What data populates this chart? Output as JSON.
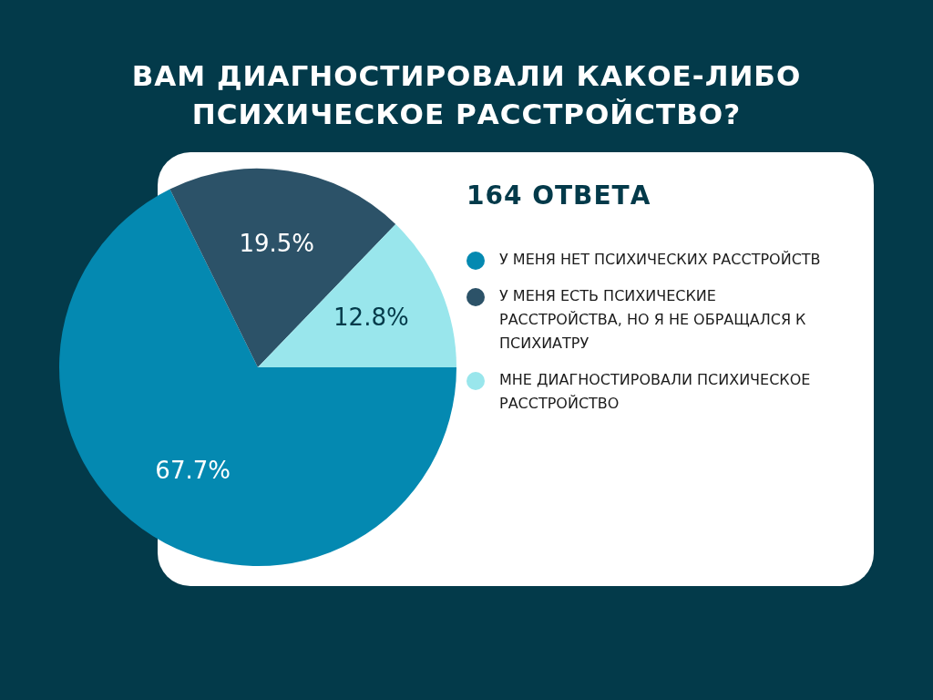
{
  "chart_data": {
    "type": "pie",
    "title": "ВАМ ДИАГНОСТИРОВАЛИ КАКОЕ-ЛИБО ПСИХИЧЕСКОЕ РАССТРОЙСТВО?",
    "subtitle": "164 ОТВЕТА",
    "categories": [
      "У МЕНЯ НЕТ ПСИХИЧЕСКИХ РАССТРОЙСТВ",
      "У МЕНЯ ЕСТЬ ПСИХИЧЕСКИЕ РАССТРОЙСТВА, НО Я НЕ ОБРАЩАЛСЯ К ПСИХИАТРУ",
      "МНЕ ДИАГНОСТИРОВАЛИ ПСИХИЧЕСКОЕ РАССТРОЙСТВО"
    ],
    "values": [
      67.7,
      19.5,
      12.8
    ],
    "value_labels": [
      "67.7%",
      "19.5%",
      "12.8%"
    ],
    "colors": [
      "#0489b1",
      "#2c5268",
      "#99e6ec"
    ],
    "legend": "right"
  }
}
